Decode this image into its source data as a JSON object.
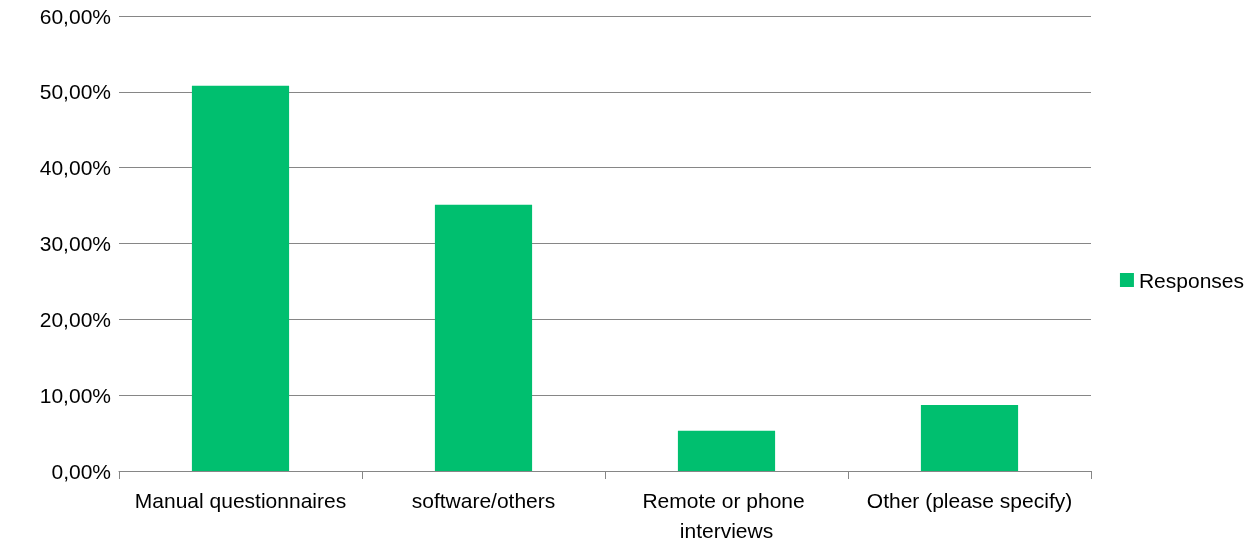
{
  "chart_data": {
    "type": "bar",
    "categories": [
      "Manual questionnaires",
      "software/others",
      "Remote or phone interviews",
      "Other (please specify)"
    ],
    "series": [
      {
        "name": "Responses",
        "color": "#00bf6f",
        "values": [
          50.8,
          35.1,
          5.3,
          8.7
        ]
      }
    ],
    "ylim": [
      0,
      60
    ],
    "yticks": [
      {
        "value": 0,
        "label": "0,00%"
      },
      {
        "value": 10,
        "label": "10,00%"
      },
      {
        "value": 20,
        "label": "20,00%"
      },
      {
        "value": 30,
        "label": "30,00%"
      },
      {
        "value": 40,
        "label": "40,00%"
      },
      {
        "value": 50,
        "label": "50,00%"
      },
      {
        "value": 60,
        "label": "60,00%"
      }
    ],
    "grid": "y",
    "legend": "right"
  }
}
